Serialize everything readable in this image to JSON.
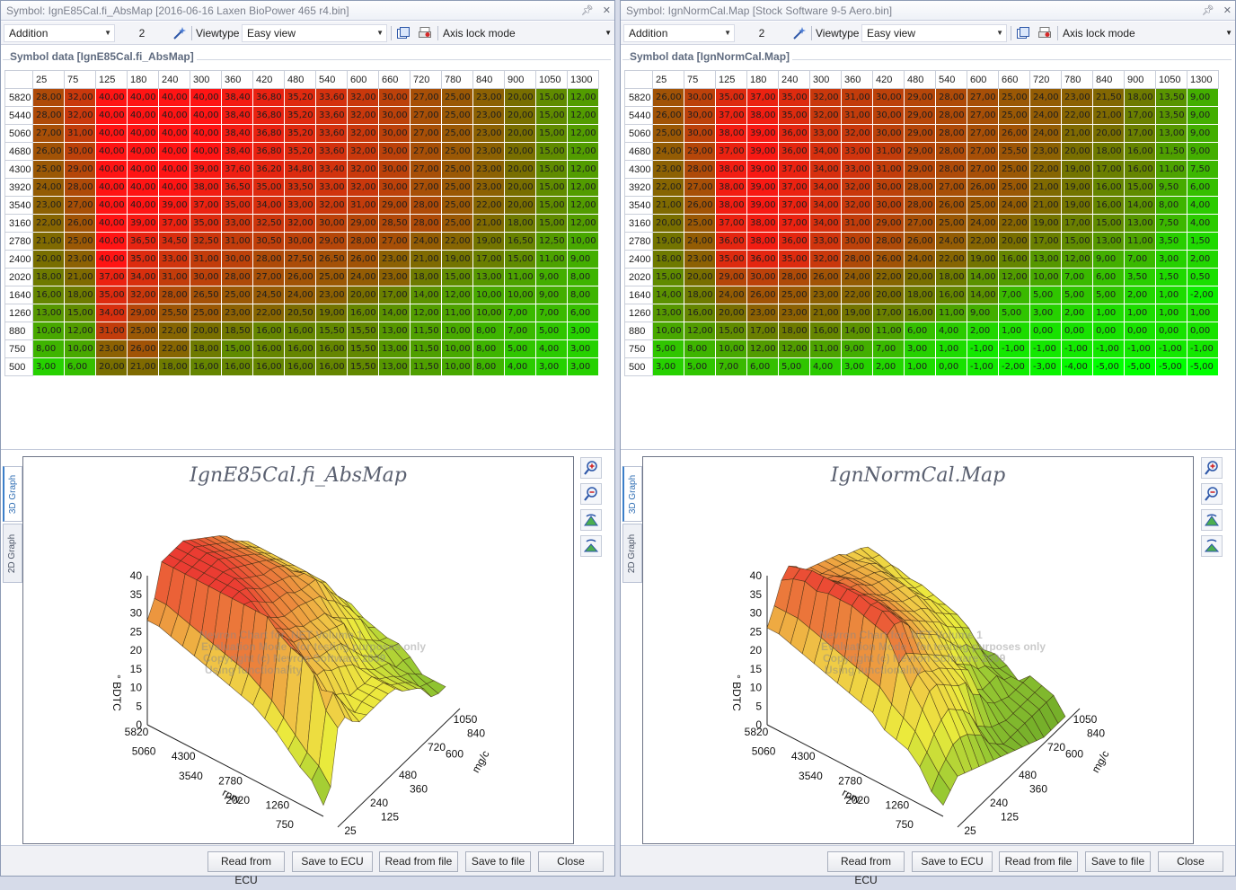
{
  "panels": [
    {
      "title": "Symbol: IgnE85Cal.fi_AbsMap [2016-06-16 Laxen BioPower 465 r4.bin]",
      "mode": "Addition",
      "value": "2",
      "viewtype_label": "Viewtype",
      "viewtype": "Easy view",
      "axis_lock": "Axis lock mode",
      "group_title": "Symbol data [IgnE85Cal.fi_AbsMap]",
      "graph_title": "IgnE85Cal.fi_AbsMap",
      "z_label": "° BDTC",
      "x_axis_label": "rpm",
      "y_axis_label": "mg/c",
      "z_ticks": [
        "40",
        "35",
        "30",
        "25",
        "20",
        "15",
        "10",
        "5",
        "0"
      ],
      "rpm_ticks": [
        "5820",
        "5060",
        "4300",
        "3540",
        "2780",
        "2020",
        "1260",
        "750"
      ],
      "mgc_ticks": [
        "1050",
        "840",
        "720",
        "600",
        "480",
        "360",
        "240",
        "125",
        "25"
      ],
      "x_headers": [
        "25",
        "75",
        "125",
        "180",
        "240",
        "300",
        "360",
        "420",
        "480",
        "540",
        "600",
        "660",
        "720",
        "780",
        "840",
        "900",
        "1050",
        "1300"
      ],
      "rows": [
        {
          "rpm": "5820",
          "v": [
            "28,00",
            "32,00",
            "40,00",
            "40,00",
            "40,00",
            "40,00",
            "38,40",
            "36,80",
            "35,20",
            "33,60",
            "32,00",
            "30,00",
            "27,00",
            "25,00",
            "23,00",
            "20,00",
            "15,00",
            "12,00"
          ]
        },
        {
          "rpm": "5440",
          "v": [
            "28,00",
            "32,00",
            "40,00",
            "40,00",
            "40,00",
            "40,00",
            "38,40",
            "36,80",
            "35,20",
            "33,60",
            "32,00",
            "30,00",
            "27,00",
            "25,00",
            "23,00",
            "20,00",
            "15,00",
            "12,00"
          ]
        },
        {
          "rpm": "5060",
          "v": [
            "27,00",
            "31,00",
            "40,00",
            "40,00",
            "40,00",
            "40,00",
            "38,40",
            "36,80",
            "35,20",
            "33,60",
            "32,00",
            "30,00",
            "27,00",
            "25,00",
            "23,00",
            "20,00",
            "15,00",
            "12,00"
          ]
        },
        {
          "rpm": "4680",
          "v": [
            "26,00",
            "30,00",
            "40,00",
            "40,00",
            "40,00",
            "40,00",
            "38,40",
            "36,80",
            "35,20",
            "33,60",
            "32,00",
            "30,00",
            "27,00",
            "25,00",
            "23,00",
            "20,00",
            "15,00",
            "12,00"
          ]
        },
        {
          "rpm": "4300",
          "v": [
            "25,00",
            "29,00",
            "40,00",
            "40,00",
            "40,00",
            "39,00",
            "37,60",
            "36,20",
            "34,80",
            "33,40",
            "32,00",
            "30,00",
            "27,00",
            "25,00",
            "23,00",
            "20,00",
            "15,00",
            "12,00"
          ]
        },
        {
          "rpm": "3920",
          "v": [
            "24,00",
            "28,00",
            "40,00",
            "40,00",
            "40,00",
            "38,00",
            "36,50",
            "35,00",
            "33,50",
            "33,00",
            "32,00",
            "30,00",
            "27,00",
            "25,00",
            "23,00",
            "20,00",
            "15,00",
            "12,00"
          ]
        },
        {
          "rpm": "3540",
          "v": [
            "23,00",
            "27,00",
            "40,00",
            "40,00",
            "39,00",
            "37,00",
            "35,00",
            "34,00",
            "33,00",
            "32,00",
            "31,00",
            "29,00",
            "28,00",
            "25,00",
            "22,00",
            "20,00",
            "15,00",
            "12,00"
          ]
        },
        {
          "rpm": "3160",
          "v": [
            "22,00",
            "26,00",
            "40,00",
            "39,00",
            "37,00",
            "35,00",
            "33,00",
            "32,50",
            "32,00",
            "30,00",
            "29,00",
            "28,50",
            "28,00",
            "25,00",
            "21,00",
            "18,00",
            "15,00",
            "12,00"
          ]
        },
        {
          "rpm": "2780",
          "v": [
            "21,00",
            "25,00",
            "40,00",
            "36,50",
            "34,50",
            "32,50",
            "31,00",
            "30,50",
            "30,00",
            "29,00",
            "28,00",
            "27,00",
            "24,00",
            "22,00",
            "19,00",
            "16,50",
            "12,50",
            "10,00"
          ]
        },
        {
          "rpm": "2400",
          "v": [
            "20,00",
            "23,00",
            "40,00",
            "35,00",
            "33,00",
            "31,00",
            "30,00",
            "28,00",
            "27,50",
            "26,50",
            "26,00",
            "23,00",
            "21,00",
            "19,00",
            "17,00",
            "15,00",
            "11,00",
            "9,00"
          ]
        },
        {
          "rpm": "2020",
          "v": [
            "18,00",
            "21,00",
            "37,00",
            "34,00",
            "31,00",
            "30,00",
            "28,00",
            "27,00",
            "26,00",
            "25,00",
            "24,00",
            "23,00",
            "18,00",
            "15,00",
            "13,00",
            "11,00",
            "9,00",
            "8,00"
          ]
        },
        {
          "rpm": "1640",
          "v": [
            "16,00",
            "18,00",
            "35,00",
            "32,00",
            "28,00",
            "26,50",
            "25,00",
            "24,50",
            "24,00",
            "23,00",
            "20,00",
            "17,00",
            "14,00",
            "12,00",
            "10,00",
            "10,00",
            "9,00",
            "8,00"
          ]
        },
        {
          "rpm": "1260",
          "v": [
            "13,00",
            "15,00",
            "34,00",
            "29,00",
            "25,50",
            "25,00",
            "23,00",
            "22,00",
            "20,50",
            "19,00",
            "16,00",
            "14,00",
            "12,00",
            "11,00",
            "10,00",
            "7,00",
            "7,00",
            "6,00"
          ]
        },
        {
          "rpm": "880",
          "v": [
            "10,00",
            "12,00",
            "31,00",
            "25,00",
            "22,00",
            "20,00",
            "18,50",
            "16,00",
            "16,00",
            "15,50",
            "15,50",
            "13,00",
            "11,50",
            "10,00",
            "8,00",
            "7,00",
            "5,00",
            "3,00"
          ]
        },
        {
          "rpm": "750",
          "v": [
            "8,00",
            "10,00",
            "23,00",
            "26,00",
            "22,00",
            "18,00",
            "15,00",
            "16,00",
            "16,00",
            "16,00",
            "15,50",
            "13,00",
            "11,50",
            "10,00",
            "8,00",
            "5,00",
            "4,00",
            "3,00"
          ]
        },
        {
          "rpm": "500",
          "v": [
            "3,00",
            "6,00",
            "20,00",
            "21,00",
            "18,00",
            "16,00",
            "16,00",
            "16,00",
            "16,00",
            "16,00",
            "15,50",
            "13,00",
            "11,50",
            "10,00",
            "8,00",
            "4,00",
            "3,00",
            "3,00"
          ]
        }
      ]
    },
    {
      "title": "Symbol: IgnNormCal.Map [Stock Software 9-5 Aero.bin]",
      "mode": "Addition",
      "value": "2",
      "viewtype_label": "Viewtype",
      "viewtype": "Easy view",
      "axis_lock": "Axis lock mode",
      "group_title": "Symbol data [IgnNormCal.Map]",
      "graph_title": "IgnNormCal.Map",
      "z_label": "° BDTC",
      "x_axis_label": "rpm",
      "y_axis_label": "mg/c",
      "z_ticks": [
        "40",
        "35",
        "30",
        "25",
        "20",
        "15",
        "10",
        "5",
        "0"
      ],
      "rpm_ticks": [
        "5820",
        "5060",
        "4300",
        "3540",
        "2780",
        "2020",
        "1260",
        "750"
      ],
      "mgc_ticks": [
        "1050",
        "840",
        "720",
        "600",
        "480",
        "360",
        "240",
        "125",
        "25"
      ],
      "x_headers": [
        "25",
        "75",
        "125",
        "180",
        "240",
        "300",
        "360",
        "420",
        "480",
        "540",
        "600",
        "660",
        "720",
        "780",
        "840",
        "900",
        "1050",
        "1300"
      ],
      "rows": [
        {
          "rpm": "5820",
          "v": [
            "26,00",
            "30,00",
            "35,00",
            "37,00",
            "35,00",
            "32,00",
            "31,00",
            "30,00",
            "29,00",
            "28,00",
            "27,00",
            "25,00",
            "24,00",
            "23,00",
            "21,50",
            "18,00",
            "13,50",
            "9,00"
          ]
        },
        {
          "rpm": "5440",
          "v": [
            "26,00",
            "30,00",
            "37,00",
            "38,00",
            "35,00",
            "32,00",
            "31,00",
            "30,00",
            "29,00",
            "28,00",
            "27,00",
            "25,00",
            "24,00",
            "22,00",
            "21,00",
            "17,00",
            "13,50",
            "9,00"
          ]
        },
        {
          "rpm": "5060",
          "v": [
            "25,00",
            "30,00",
            "38,00",
            "39,00",
            "36,00",
            "33,00",
            "32,00",
            "30,00",
            "29,00",
            "28,00",
            "27,00",
            "26,00",
            "24,00",
            "21,00",
            "20,00",
            "17,00",
            "13,00",
            "9,00"
          ]
        },
        {
          "rpm": "4680",
          "v": [
            "24,00",
            "29,00",
            "37,00",
            "39,00",
            "36,00",
            "34,00",
            "33,00",
            "31,00",
            "29,00",
            "28,00",
            "27,00",
            "25,50",
            "23,00",
            "20,00",
            "18,00",
            "16,00",
            "11,50",
            "9,00"
          ]
        },
        {
          "rpm": "4300",
          "v": [
            "23,00",
            "28,00",
            "38,00",
            "39,00",
            "37,00",
            "34,00",
            "33,00",
            "31,00",
            "29,00",
            "28,00",
            "27,00",
            "25,00",
            "22,00",
            "19,00",
            "17,00",
            "16,00",
            "11,00",
            "7,50"
          ]
        },
        {
          "rpm": "3920",
          "v": [
            "22,00",
            "27,00",
            "38,00",
            "39,00",
            "37,00",
            "34,00",
            "32,00",
            "30,00",
            "28,00",
            "27,00",
            "26,00",
            "25,00",
            "21,00",
            "19,00",
            "16,00",
            "15,00",
            "9,50",
            "6,00"
          ]
        },
        {
          "rpm": "3540",
          "v": [
            "21,00",
            "26,00",
            "38,00",
            "39,00",
            "37,00",
            "34,00",
            "32,00",
            "30,00",
            "28,00",
            "26,00",
            "25,00",
            "24,00",
            "21,00",
            "19,00",
            "16,00",
            "14,00",
            "8,00",
            "4,00"
          ]
        },
        {
          "rpm": "3160",
          "v": [
            "20,00",
            "25,00",
            "37,00",
            "38,00",
            "37,00",
            "34,00",
            "31,00",
            "29,00",
            "27,00",
            "25,00",
            "24,00",
            "22,00",
            "19,00",
            "17,00",
            "15,00",
            "13,00",
            "7,50",
            "4,00"
          ]
        },
        {
          "rpm": "2780",
          "v": [
            "19,00",
            "24,00",
            "36,00",
            "38,00",
            "36,00",
            "33,00",
            "30,00",
            "28,00",
            "26,00",
            "24,00",
            "22,00",
            "20,00",
            "17,00",
            "15,00",
            "13,00",
            "11,00",
            "3,50",
            "1,50"
          ]
        },
        {
          "rpm": "2400",
          "v": [
            "18,00",
            "23,00",
            "35,00",
            "36,00",
            "35,00",
            "32,00",
            "28,00",
            "26,00",
            "24,00",
            "22,00",
            "19,00",
            "16,00",
            "13,00",
            "12,00",
            "9,00",
            "7,00",
            "3,00",
            "2,00"
          ]
        },
        {
          "rpm": "2020",
          "v": [
            "15,00",
            "20,00",
            "29,00",
            "30,00",
            "28,00",
            "26,00",
            "24,00",
            "22,00",
            "20,00",
            "18,00",
            "14,00",
            "12,00",
            "10,00",
            "7,00",
            "6,00",
            "3,50",
            "1,50",
            "0,50"
          ]
        },
        {
          "rpm": "1640",
          "v": [
            "14,00",
            "18,00",
            "24,00",
            "26,00",
            "25,00",
            "23,00",
            "22,00",
            "20,00",
            "18,00",
            "16,00",
            "14,00",
            "7,00",
            "5,00",
            "5,00",
            "5,00",
            "2,00",
            "1,00",
            "-2,00"
          ]
        },
        {
          "rpm": "1260",
          "v": [
            "13,00",
            "16,00",
            "20,00",
            "23,00",
            "23,00",
            "21,00",
            "19,00",
            "17,00",
            "16,00",
            "11,00",
            "9,00",
            "5,00",
            "3,00",
            "2,00",
            "1,00",
            "1,00",
            "1,00",
            "1,00"
          ]
        },
        {
          "rpm": "880",
          "v": [
            "10,00",
            "12,00",
            "15,00",
            "17,00",
            "18,00",
            "16,00",
            "14,00",
            "11,00",
            "6,00",
            "4,00",
            "2,00",
            "1,00",
            "0,00",
            "0,00",
            "0,00",
            "0,00",
            "0,00",
            "0,00"
          ]
        },
        {
          "rpm": "750",
          "v": [
            "5,00",
            "8,00",
            "10,00",
            "12,00",
            "12,00",
            "11,00",
            "9,00",
            "7,00",
            "3,00",
            "1,00",
            "-1,00",
            "-1,00",
            "-1,00",
            "-1,00",
            "-1,00",
            "-1,00",
            "-1,00",
            "-1,00"
          ]
        },
        {
          "rpm": "500",
          "v": [
            "3,00",
            "5,00",
            "7,00",
            "6,00",
            "5,00",
            "4,00",
            "3,00",
            "2,00",
            "1,00",
            "0,00",
            "-1,00",
            "-2,00",
            "-3,00",
            "-4,00",
            "-5,00",
            "-5,00",
            "-5,00",
            "-5,00"
          ]
        }
      ]
    }
  ],
  "tabs": {
    "graph3d": "3D Graph",
    "graph2d": "2D Graph"
  },
  "buttons": [
    "Read from ECU",
    "Save to ECU",
    "Read from file",
    "Save to file",
    "Close"
  ],
  "watermark": [
    "Nevron Chart for .NET Volume 1",
    "Evaluation Mode - for testing purposes only",
    "Copyright (c) Nevron Software 2009",
    "Using functionality"
  ],
  "colors": {
    "hot": "#ff1a1a",
    "mid": "#6e6e00",
    "cool": "#00ff00"
  }
}
